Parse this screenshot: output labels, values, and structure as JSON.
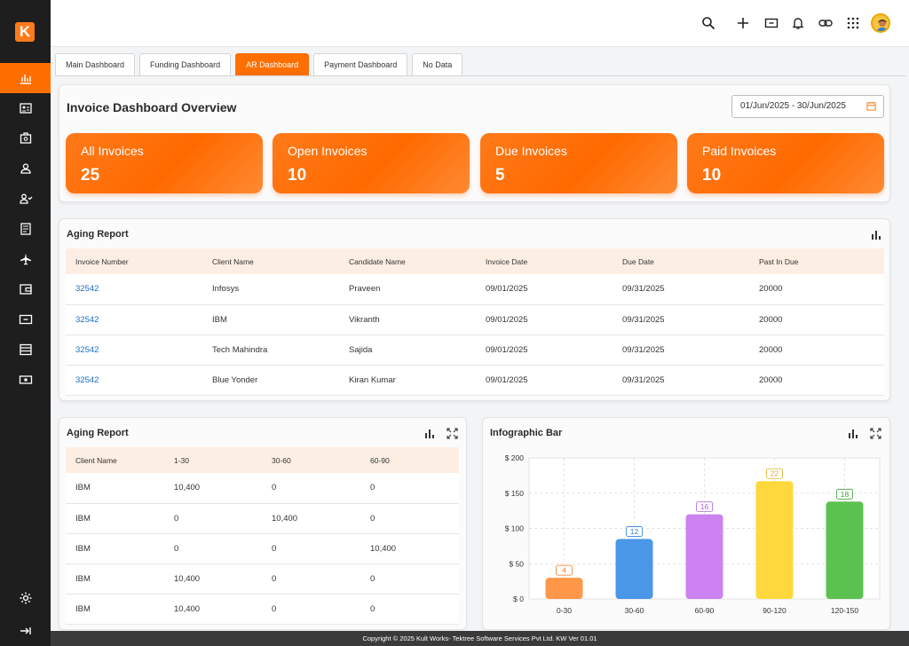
{
  "app": {
    "logo_letter": "K",
    "brand_color": "#ff6f00"
  },
  "sidebar": {
    "items": [
      {
        "icon": "bar-chart-icon",
        "active": true
      },
      {
        "icon": "id-card-icon",
        "active": false
      },
      {
        "icon": "briefcase-icon",
        "active": false
      },
      {
        "icon": "user-icon",
        "active": false
      },
      {
        "icon": "users-icon",
        "active": false
      },
      {
        "icon": "document-icon",
        "active": false
      },
      {
        "icon": "airplane-icon",
        "active": false
      },
      {
        "icon": "wallet-icon",
        "active": false
      },
      {
        "icon": "ticket-icon",
        "active": false
      },
      {
        "icon": "list-icon",
        "active": false
      },
      {
        "icon": "money-icon",
        "active": false
      }
    ],
    "settings_icon": "gear-icon",
    "collapse_icon": "collapse-arrow-icon"
  },
  "topbar": {
    "icons": [
      "search-icon",
      "plus-icon",
      "ticket-icon",
      "bell-icon",
      "link-icon",
      "apps-grid-icon"
    ],
    "avatar": "avatar"
  },
  "tabs": [
    {
      "label": "Main Dashboard",
      "active": false
    },
    {
      "label": "Funding Dashboard",
      "active": false
    },
    {
      "label": "AR Dashboard",
      "active": true
    },
    {
      "label": "Payment Dashboard",
      "active": false
    },
    {
      "label": "No Data",
      "active": false
    }
  ],
  "overview": {
    "title": "Invoice Dashboard Overview",
    "date_range": "01/Jun/2025 - 30/Jun/2025",
    "stats": [
      {
        "label": "All Invoices",
        "value": "25"
      },
      {
        "label": "Open Invoices",
        "value": "10"
      },
      {
        "label": "Due Invoices",
        "value": "5"
      },
      {
        "label": "Paid Invoices",
        "value": "10"
      }
    ]
  },
  "aging_report_1": {
    "title": "Aging Report",
    "columns": [
      "Invoice Number",
      "Client Name",
      "Candidate Name",
      "Invoice Date",
      "Due Date",
      "Past In Due"
    ],
    "rows": [
      [
        "32542",
        "Infosys",
        "Praveen",
        "09/01/2025",
        "09/31/2025",
        "20000"
      ],
      [
        "32542",
        "IBM",
        "Vikranth",
        "09/01/2025",
        "09/31/2025",
        "20000"
      ],
      [
        "32542",
        "Tech Mahindra",
        "Sajida",
        "09/01/2025",
        "09/31/2025",
        "20000"
      ],
      [
        "32542",
        "Blue Yonder",
        "Kiran Kumar",
        "09/01/2025",
        "09/31/2025",
        "20000"
      ]
    ]
  },
  "aging_report_2": {
    "title": "Aging Report",
    "columns": [
      "Client Name",
      "1-30",
      "30-60",
      "60-90"
    ],
    "rows": [
      [
        "IBM",
        "10,400",
        "0",
        "0"
      ],
      [
        "IBM",
        "0",
        "10,400",
        "0"
      ],
      [
        "IBM",
        "0",
        "0",
        "10,400"
      ],
      [
        "IBM",
        "10,400",
        "0",
        "0"
      ],
      [
        "IBM",
        "10,400",
        "0",
        "0"
      ]
    ]
  },
  "infographic": {
    "title": "Infographic Bar"
  },
  "chart_data": {
    "type": "bar",
    "categories": [
      "0-30",
      "30-60",
      "60-90",
      "90-120",
      "120-150"
    ],
    "values": [
      30,
      85,
      120,
      167,
      138
    ],
    "data_labels": [
      "4",
      "12",
      "16",
      "22",
      "18"
    ],
    "colors": [
      "#ff9748",
      "#4a97e8",
      "#cc82f0",
      "#ffd83d",
      "#5cc24f"
    ],
    "label_colors": [
      "#f07a20",
      "#2f7fd6",
      "#b060e0",
      "#e0b020",
      "#3aa03a"
    ],
    "ylim": [
      0,
      200
    ],
    "yticks": [
      0,
      50,
      100,
      150,
      200
    ],
    "ytick_labels": [
      "$ 0",
      "$ 50",
      "$ 100",
      "$ 150",
      "$ 200"
    ],
    "grid": true,
    "title": "",
    "xlabel": "",
    "ylabel": ""
  },
  "footer": {
    "text": "Copyright © 2025 Kult Works- Tektree Software Services Pvt Ltd.  KW Ver 01.01"
  }
}
